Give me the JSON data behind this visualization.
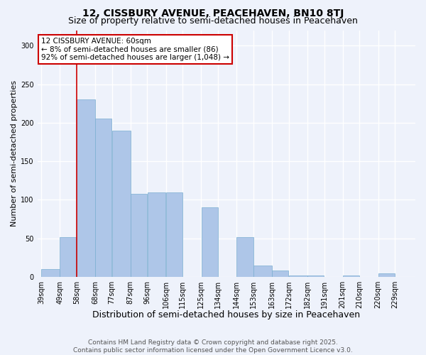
{
  "title": "12, CISSBURY AVENUE, PEACEHAVEN, BN10 8TJ",
  "subtitle": "Size of property relative to semi-detached houses in Peacehaven",
  "xlabel": "Distribution of semi-detached houses by size in Peacehaven",
  "ylabel": "Number of semi-detached properties",
  "footer_line1": "Contains HM Land Registry data © Crown copyright and database right 2025.",
  "footer_line2": "Contains public sector information licensed under the Open Government Licence v3.0.",
  "annotation_title": "12 CISSBURY AVENUE: 60sqm",
  "annotation_line2": "← 8% of semi-detached houses are smaller (86)",
  "annotation_line3": "92% of semi-detached houses are larger (1,048) →",
  "bar_edges": [
    39,
    49,
    58,
    68,
    77,
    87,
    96,
    106,
    115,
    125,
    134,
    144,
    153,
    163,
    172,
    182,
    191,
    201,
    210,
    220,
    229
  ],
  "bar_heights": [
    10,
    52,
    230,
    205,
    190,
    108,
    110,
    110,
    0,
    90,
    0,
    52,
    15,
    8,
    2,
    2,
    0,
    2,
    0,
    5
  ],
  "bar_color": "#aec6e8",
  "bar_edgecolor": "#7aaed0",
  "vline_x": 58,
  "vline_color": "#cc0000",
  "ylim": [
    0,
    320
  ],
  "yticks": [
    0,
    50,
    100,
    150,
    200,
    250,
    300
  ],
  "bg_color": "#eef2fb",
  "grid_color": "#ffffff",
  "annotation_box_facecolor": "#ffffff",
  "annotation_box_edgecolor": "#cc0000",
  "title_fontsize": 10,
  "subtitle_fontsize": 9,
  "xlabel_fontsize": 9,
  "ylabel_fontsize": 8,
  "tick_fontsize": 7,
  "footer_fontsize": 6.5,
  "annotation_fontsize": 7.5
}
